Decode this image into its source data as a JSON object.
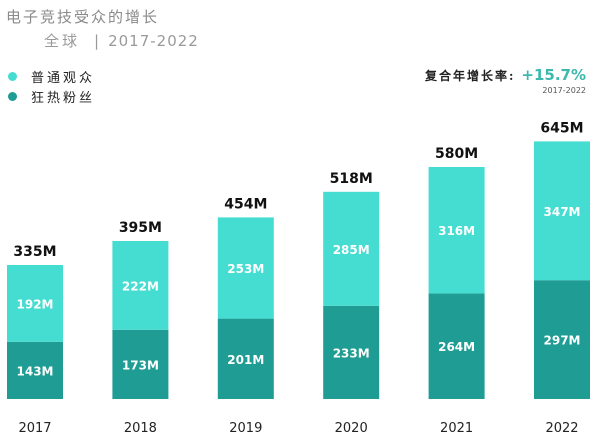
{
  "header": {
    "title": "电子竞技受众的增长",
    "region": "全球",
    "separator": "|",
    "period": "2017-2022"
  },
  "legend": [
    {
      "label": "普通观众",
      "color": "#45ddd2"
    },
    {
      "label": "狂热粉丝",
      "color": "#1f9c93"
    }
  ],
  "cagr": {
    "label": "复合年增长率:",
    "value": "+15.7%",
    "range": "2017-2022"
  },
  "chart_data": {
    "type": "bar",
    "stacked": true,
    "categories": [
      "2017",
      "2018",
      "2019",
      "2020",
      "2021",
      "2022"
    ],
    "series": [
      {
        "name": "狂热粉丝",
        "color": "#1f9c93",
        "values": [
          143,
          173,
          201,
          233,
          264,
          297
        ]
      },
      {
        "name": "普通观众",
        "color": "#45ddd2",
        "values": [
          192,
          222,
          253,
          285,
          316,
          347
        ]
      }
    ],
    "totals": [
      335,
      395,
      454,
      518,
      580,
      645
    ],
    "unit": "M",
    "title": "电子竞技受众的增长",
    "xlabel": "",
    "ylabel": "",
    "grid": false
  }
}
